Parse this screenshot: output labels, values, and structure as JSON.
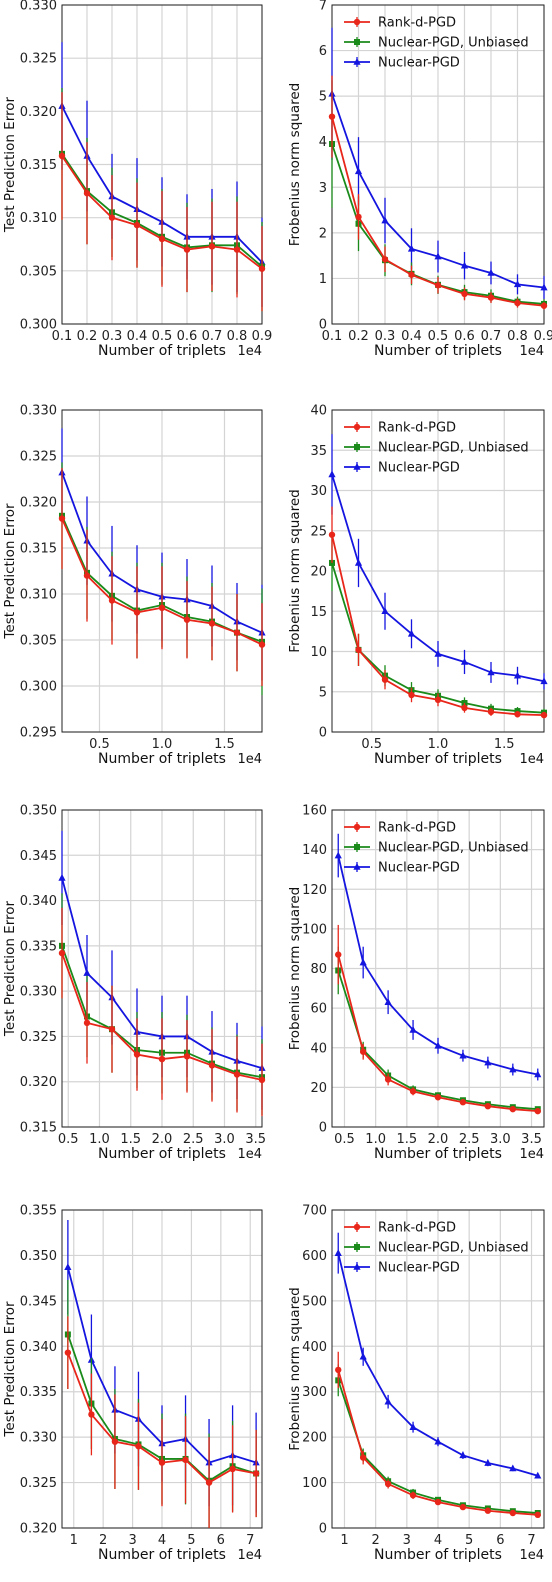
{
  "chart_data": [
    {
      "type": "line",
      "xlabel": "Number of triplets",
      "ylabel": "Test Prediction Error",
      "x_scale_label": "1e4",
      "xlim": [
        0.1,
        0.9
      ],
      "ylim": [
        0.3,
        0.33
      ],
      "xticks": [
        "0.1",
        "0.2",
        "0.3",
        "0.4",
        "0.5",
        "0.6",
        "0.7",
        "0.8",
        "0.9"
      ],
      "yticks": [
        "0.300",
        "0.305",
        "0.310",
        "0.315",
        "0.320",
        "0.325",
        "0.330"
      ],
      "x": [
        0.1,
        0.2,
        0.3,
        0.4,
        0.5,
        0.6,
        0.7,
        0.8,
        0.9
      ],
      "legend": "none",
      "grid": true,
      "series": [
        {
          "name": "Rank-d-PGD",
          "color": "#e8261a",
          "marker": "circle",
          "values": [
            0.3158,
            0.3123,
            0.31,
            0.3093,
            0.308,
            0.307,
            0.3073,
            0.307,
            0.3052
          ],
          "errors": [
            0.006,
            0.0048,
            0.004,
            0.004,
            0.0045,
            0.004,
            0.0042,
            0.0045,
            0.004
          ]
        },
        {
          "name": "Nuclear-PGD, Unbiased",
          "color": "#1a8a1a",
          "marker": "square",
          "values": [
            0.316,
            0.3125,
            0.3105,
            0.3095,
            0.3082,
            0.3072,
            0.3074,
            0.3074,
            0.3054
          ],
          "errors": [
            0.0062,
            0.005,
            0.0042,
            0.0042,
            0.0045,
            0.0042,
            0.0044,
            0.0046,
            0.0042
          ]
        },
        {
          "name": "Nuclear-PGD",
          "color": "#1515e0",
          "marker": "triangle",
          "values": [
            0.3205,
            0.3158,
            0.312,
            0.3108,
            0.3096,
            0.3082,
            0.3082,
            0.3082,
            0.3058
          ],
          "errors": [
            0.006,
            0.0052,
            0.004,
            0.0048,
            0.0042,
            0.004,
            0.0045,
            0.0052,
            0.0042
          ]
        }
      ]
    },
    {
      "type": "line",
      "xlabel": "Number of triplets",
      "ylabel": "Frobenius norm squared",
      "x_scale_label": "1e4",
      "xlim": [
        0.1,
        0.9
      ],
      "ylim": [
        0,
        7
      ],
      "xticks": [
        "0.1",
        "0.2",
        "0.3",
        "0.4",
        "0.5",
        "0.6",
        "0.7",
        "0.8",
        "0.9"
      ],
      "yticks": [
        "0",
        "1",
        "2",
        "3",
        "4",
        "5",
        "6",
        "7"
      ],
      "x": [
        0.1,
        0.2,
        0.3,
        0.4,
        0.5,
        0.6,
        0.7,
        0.8,
        0.9
      ],
      "legend": "top-right",
      "grid": true,
      "series": [
        {
          "name": "Rank-d-PGD",
          "color": "#e8261a",
          "marker": "circle",
          "values": [
            4.55,
            2.35,
            1.42,
            1.08,
            0.85,
            0.66,
            0.58,
            0.46,
            0.4
          ],
          "errors": [
            0.9,
            0.5,
            0.28,
            0.2,
            0.18,
            0.14,
            0.12,
            0.1,
            0.08
          ]
        },
        {
          "name": "Nuclear-PGD, Unbiased",
          "color": "#1a8a1a",
          "marker": "square",
          "values": [
            3.95,
            2.2,
            1.4,
            1.1,
            0.86,
            0.7,
            0.62,
            0.49,
            0.44
          ],
          "errors": [
            1.4,
            0.6,
            0.35,
            0.25,
            0.2,
            0.16,
            0.14,
            0.11,
            0.1
          ]
        },
        {
          "name": "Nuclear-PGD",
          "color": "#1515e0",
          "marker": "triangle",
          "values": [
            5.05,
            3.35,
            2.27,
            1.65,
            1.48,
            1.28,
            1.12,
            0.87,
            0.8
          ],
          "errors": [
            1.45,
            0.75,
            0.5,
            0.45,
            0.35,
            0.3,
            0.25,
            0.22,
            0.25
          ]
        }
      ]
    },
    {
      "type": "line",
      "xlabel": "Number of triplets",
      "ylabel": "Test Prediction Error",
      "x_scale_label": "1e4",
      "xlim": [
        0.2,
        1.8
      ],
      "ylim": [
        0.295,
        0.33
      ],
      "xticks": [
        "0.5",
        "1.0",
        "1.5"
      ],
      "xtick_values": [
        0.5,
        1.0,
        1.5
      ],
      "yticks": [
        "0.295",
        "0.300",
        "0.305",
        "0.310",
        "0.315",
        "0.320",
        "0.325",
        "0.330"
      ],
      "x": [
        0.2,
        0.4,
        0.6,
        0.8,
        1.0,
        1.2,
        1.4,
        1.6,
        1.8
      ],
      "legend": "none",
      "grid": true,
      "series": [
        {
          "name": "Rank-d-PGD",
          "color": "#e8261a",
          "marker": "circle",
          "values": [
            0.3182,
            0.312,
            0.3093,
            0.308,
            0.3085,
            0.3072,
            0.3068,
            0.3058,
            0.3045
          ],
          "errors": [
            0.0055,
            0.005,
            0.0048,
            0.005,
            0.0045,
            0.0042,
            0.004,
            0.0042,
            0.0045
          ]
        },
        {
          "name": "Nuclear-PGD, Unbiased",
          "color": "#1a8a1a",
          "marker": "square",
          "values": [
            0.3185,
            0.3123,
            0.3098,
            0.3082,
            0.3088,
            0.3075,
            0.307,
            0.3058,
            0.3048
          ],
          "errors": [
            0.0058,
            0.005,
            0.0048,
            0.0052,
            0.0046,
            0.0044,
            0.0042,
            0.0042,
            0.0058
          ]
        },
        {
          "name": "Nuclear-PGD",
          "color": "#1515e0",
          "marker": "triangle",
          "values": [
            0.3232,
            0.3158,
            0.3122,
            0.3105,
            0.3097,
            0.3094,
            0.3087,
            0.307,
            0.3058
          ],
          "errors": [
            0.0048,
            0.0048,
            0.0052,
            0.0048,
            0.0048,
            0.0044,
            0.0044,
            0.0042,
            0.0052
          ]
        }
      ]
    },
    {
      "type": "line",
      "xlabel": "Number of triplets",
      "ylabel": "Frobenius norm squared",
      "x_scale_label": "1e4",
      "xlim": [
        0.2,
        1.8
      ],
      "ylim": [
        0,
        40
      ],
      "xticks": [
        "0.5",
        "1.0",
        "1.5"
      ],
      "xtick_values": [
        0.5,
        1.0,
        1.5
      ],
      "yticks": [
        "0",
        "5",
        "10",
        "15",
        "20",
        "25",
        "30",
        "35",
        "40"
      ],
      "x": [
        0.2,
        0.4,
        0.6,
        0.8,
        1.0,
        1.2,
        1.4,
        1.6,
        1.8
      ],
      "legend": "top-right",
      "grid": true,
      "series": [
        {
          "name": "Rank-d-PGD",
          "color": "#e8261a",
          "marker": "circle",
          "values": [
            24.5,
            10.2,
            6.5,
            4.6,
            4.0,
            3.0,
            2.5,
            2.2,
            2.1
          ],
          "errors": [
            3.5,
            2.0,
            1.2,
            0.9,
            0.8,
            0.6,
            0.5,
            0.4,
            0.4
          ]
        },
        {
          "name": "Nuclear-PGD, Unbiased",
          "color": "#1a8a1a",
          "marker": "square",
          "values": [
            21.0,
            10.2,
            7.0,
            5.2,
            4.5,
            3.6,
            2.9,
            2.6,
            2.4
          ],
          "errors": [
            3.5,
            2.0,
            1.3,
            1.0,
            0.8,
            0.7,
            0.6,
            0.5,
            0.5
          ]
        },
        {
          "name": "Nuclear-PGD",
          "color": "#1515e0",
          "marker": "triangle",
          "values": [
            32.0,
            21.0,
            15.0,
            12.2,
            9.7,
            8.7,
            7.4,
            7.0,
            6.3
          ],
          "errors": [
            5.0,
            3.0,
            2.3,
            1.8,
            1.6,
            1.5,
            1.3,
            1.1,
            1.0
          ]
        }
      ]
    },
    {
      "type": "line",
      "xlabel": "Number of triplets",
      "ylabel": "Test Prediction Error",
      "x_scale_label": "1e4",
      "xlim": [
        0.4,
        3.6
      ],
      "ylim": [
        0.315,
        0.35
      ],
      "xticks": [
        "0.5",
        "1.0",
        "1.5",
        "2.0",
        "2.5",
        "3.0",
        "3.5"
      ],
      "xtick_values": [
        0.5,
        1.0,
        1.5,
        2.0,
        2.5,
        3.0,
        3.5
      ],
      "yticks": [
        "0.315",
        "0.320",
        "0.325",
        "0.330",
        "0.335",
        "0.340",
        "0.345",
        "0.350"
      ],
      "x": [
        0.4,
        0.8,
        1.2,
        1.6,
        2.0,
        2.4,
        2.8,
        3.2,
        3.6
      ],
      "legend": "none",
      "grid": true,
      "series": [
        {
          "name": "Rank-d-PGD",
          "color": "#e8261a",
          "marker": "circle",
          "values": [
            0.3342,
            0.3265,
            0.3258,
            0.323,
            0.3225,
            0.3228,
            0.3218,
            0.3208,
            0.3202
          ],
          "errors": [
            0.005,
            0.0045,
            0.0048,
            0.004,
            0.0045,
            0.004,
            0.004,
            0.0042,
            0.004
          ]
        },
        {
          "name": "Nuclear-PGD, Unbiased",
          "color": "#1a8a1a",
          "marker": "square",
          "values": [
            0.335,
            0.3272,
            0.3258,
            0.3235,
            0.3232,
            0.3232,
            0.322,
            0.321,
            0.3205
          ],
          "errors": [
            0.0058,
            0.0045,
            0.0048,
            0.0042,
            0.0045,
            0.0042,
            0.004,
            0.0042,
            0.0042
          ]
        },
        {
          "name": "Nuclear-PGD",
          "color": "#1515e0",
          "marker": "triangle",
          "values": [
            0.3425,
            0.332,
            0.3293,
            0.3255,
            0.325,
            0.325,
            0.3233,
            0.3223,
            0.3215
          ],
          "errors": [
            0.0052,
            0.0042,
            0.0052,
            0.0048,
            0.0045,
            0.0045,
            0.0045,
            0.0042,
            0.0046
          ]
        }
      ]
    },
    {
      "type": "line",
      "xlabel": "Number of triplets",
      "ylabel": "Frobenius norm squared",
      "x_scale_label": "1e4",
      "xlim": [
        0.3,
        3.7
      ],
      "ylim": [
        0,
        160
      ],
      "xticks": [
        "0.5",
        "1.0",
        "1.5",
        "2.0",
        "2.5",
        "3.0",
        "3.5"
      ],
      "xtick_values": [
        0.5,
        1.0,
        1.5,
        2.0,
        2.5,
        3.0,
        3.5
      ],
      "yticks": [
        "0",
        "20",
        "40",
        "60",
        "80",
        "100",
        "120",
        "140",
        "160"
      ],
      "x": [
        0.4,
        0.8,
        1.2,
        1.6,
        2.0,
        2.4,
        2.8,
        3.2,
        3.6
      ],
      "legend": "top-right",
      "grid": true,
      "series": [
        {
          "name": "Rank-d-PGD",
          "color": "#e8261a",
          "marker": "circle",
          "values": [
            87,
            38,
            24,
            18,
            15,
            12.5,
            10.5,
            9,
            8
          ],
          "errors": [
            15,
            4,
            3,
            2,
            1.5,
            1.2,
            1,
            1,
            0.8
          ]
        },
        {
          "name": "Nuclear-PGD, Unbiased",
          "color": "#1a8a1a",
          "marker": "square",
          "values": [
            79,
            39,
            26,
            19,
            16,
            13.5,
            11.5,
            10,
            9
          ],
          "errors": [
            12,
            4,
            3,
            2,
            1.5,
            1.2,
            1,
            1,
            0.8
          ]
        },
        {
          "name": "Nuclear-PGD",
          "color": "#1515e0",
          "marker": "triangle",
          "values": [
            137,
            83,
            63,
            49,
            41,
            36,
            32.5,
            29,
            26.5
          ],
          "errors": [
            11,
            8,
            6,
            5,
            4,
            3,
            3,
            3,
            3
          ]
        }
      ]
    },
    {
      "type": "line",
      "xlabel": "Number of triplets",
      "ylabel": "Test Prediction Error",
      "x_scale_label": "1e4",
      "xlim": [
        0.6,
        7.4
      ],
      "ylim": [
        0.32,
        0.355
      ],
      "xticks": [
        "1",
        "2",
        "3",
        "4",
        "5",
        "6",
        "7"
      ],
      "xtick_values": [
        1,
        2,
        3,
        4,
        5,
        6,
        7
      ],
      "yticks": [
        "0.320",
        "0.325",
        "0.330",
        "0.335",
        "0.340",
        "0.345",
        "0.350",
        "0.355"
      ],
      "x": [
        0.8,
        1.6,
        2.4,
        3.2,
        4.0,
        4.8,
        5.6,
        6.4,
        7.2
      ],
      "legend": "none",
      "grid": true,
      "series": [
        {
          "name": "Rank-d-PGD",
          "color": "#e8261a",
          "marker": "circle",
          "values": [
            0.3393,
            0.3325,
            0.3295,
            0.329,
            0.3272,
            0.3275,
            0.325,
            0.3265,
            0.326
          ],
          "errors": [
            0.004,
            0.0045,
            0.0052,
            0.0048,
            0.0048,
            0.0048,
            0.005,
            0.0048,
            0.0048
          ]
        },
        {
          "name": "Nuclear-PGD, Unbiased",
          "color": "#1a8a1a",
          "marker": "square",
          "values": [
            0.3413,
            0.3337,
            0.3298,
            0.3292,
            0.3276,
            0.3276,
            0.3252,
            0.3268,
            0.326
          ],
          "errors": [
            0.006,
            0.005,
            0.0055,
            0.005,
            0.005,
            0.005,
            0.0052,
            0.005,
            0.0048
          ]
        },
        {
          "name": "Nuclear-PGD",
          "color": "#1515e0",
          "marker": "triangle",
          "values": [
            0.3487,
            0.3385,
            0.333,
            0.332,
            0.3293,
            0.3298,
            0.3272,
            0.328,
            0.3272
          ],
          "errors": [
            0.0052,
            0.005,
            0.0048,
            0.0052,
            0.0042,
            0.0048,
            0.0048,
            0.0055,
            0.0055
          ]
        }
      ]
    },
    {
      "type": "line",
      "xlabel": "Number of triplets",
      "ylabel": "Frobenius norm squared",
      "x_scale_label": "1e4",
      "xlim": [
        0.6,
        7.4
      ],
      "ylim": [
        0,
        700
      ],
      "xticks": [
        "1",
        "2",
        "3",
        "4",
        "5",
        "6",
        "7"
      ],
      "xtick_values": [
        1,
        2,
        3,
        4,
        5,
        6,
        7
      ],
      "yticks": [
        "0",
        "100",
        "200",
        "300",
        "400",
        "500",
        "600",
        "700"
      ],
      "x": [
        0.8,
        1.6,
        2.4,
        3.2,
        4.0,
        4.8,
        5.6,
        6.4,
        7.2
      ],
      "legend": "top-right",
      "grid": true,
      "series": [
        {
          "name": "Rank-d-PGD",
          "color": "#e8261a",
          "marker": "circle",
          "values": [
            348,
            155,
            97,
            72,
            57,
            46,
            38,
            33,
            29
          ],
          "errors": [
            40,
            15,
            10,
            8,
            6,
            5,
            4,
            4,
            3
          ]
        },
        {
          "name": "Nuclear-PGD, Unbiased",
          "color": "#1a8a1a",
          "marker": "square",
          "values": [
            325,
            160,
            103,
            78,
            62,
            50,
            43,
            37,
            33
          ],
          "errors": [
            35,
            15,
            10,
            8,
            6,
            5,
            4,
            4,
            3
          ]
        },
        {
          "name": "Nuclear-PGD",
          "color": "#1515e0",
          "marker": "triangle",
          "values": [
            605,
            377,
            278,
            222,
            190,
            160,
            143,
            131,
            115
          ],
          "errors": [
            45,
            20,
            15,
            12,
            10,
            8,
            7,
            6,
            6
          ]
        }
      ]
    }
  ]
}
